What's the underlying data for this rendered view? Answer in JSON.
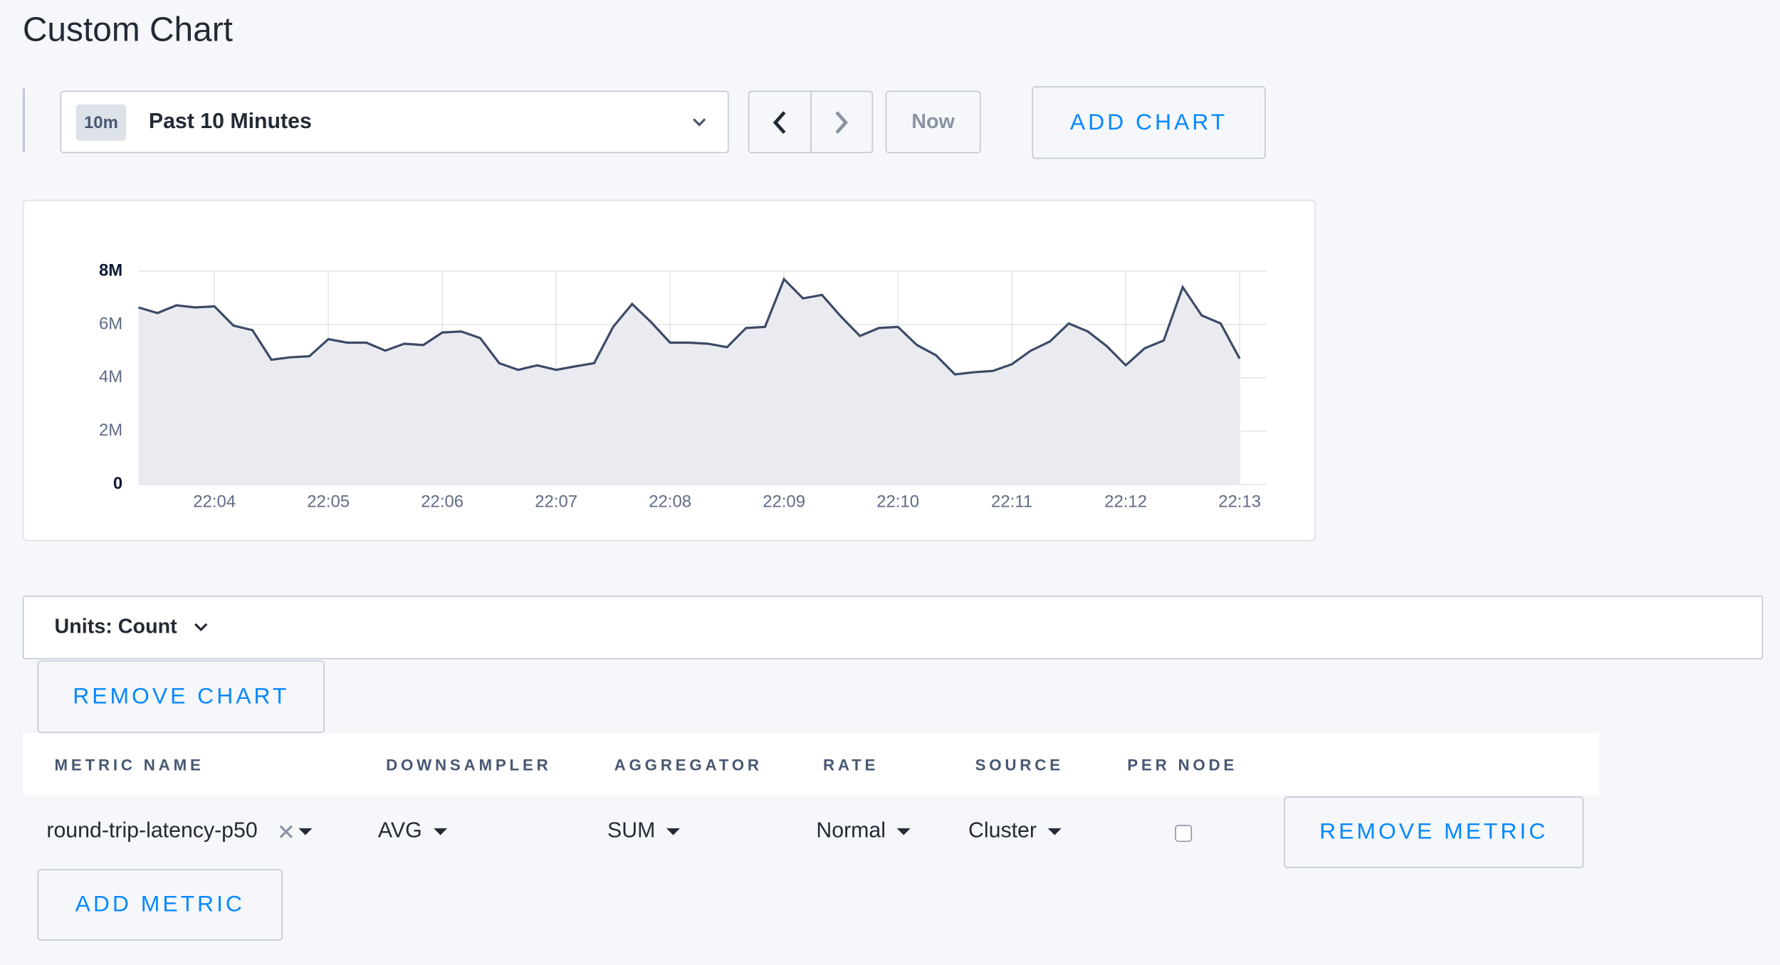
{
  "header": {
    "title": "Custom Chart"
  },
  "controls": {
    "time_badge": "10m",
    "time_range": "Past 10 Minutes",
    "now": "Now",
    "add_chart": "ADD CHART"
  },
  "chart_data": {
    "type": "line",
    "categories": [
      null,
      null,
      null,
      null,
      "22:04",
      null,
      null,
      null,
      null,
      null,
      "22:05",
      null,
      null,
      null,
      null,
      null,
      "22:06",
      null,
      null,
      null,
      null,
      null,
      "22:07",
      null,
      null,
      null,
      null,
      null,
      "22:08",
      null,
      null,
      null,
      null,
      null,
      "22:09",
      null,
      null,
      null,
      null,
      null,
      "22:10",
      null,
      null,
      null,
      null,
      null,
      "22:11",
      null,
      null,
      null,
      null,
      null,
      "22:12",
      null,
      null,
      null,
      null,
      null,
      "22:13"
    ],
    "values": [
      6640000,
      6430000,
      6720000,
      6640000,
      6680000,
      5960000,
      5790000,
      4680000,
      4770000,
      4810000,
      5450000,
      5320000,
      5320000,
      5020000,
      5280000,
      5230000,
      5700000,
      5740000,
      5490000,
      4550000,
      4300000,
      4470000,
      4300000,
      4430000,
      4550000,
      5910000,
      6770000,
      6090000,
      5320000,
      5320000,
      5280000,
      5150000,
      5870000,
      5910000,
      7700000,
      6980000,
      7110000,
      6300000,
      5570000,
      5870000,
      5910000,
      5230000,
      4850000,
      4130000,
      4210000,
      4260000,
      4510000,
      5020000,
      5360000,
      6040000,
      5740000,
      5190000,
      4470000,
      5110000,
      5400000,
      7400000,
      6340000,
      6040000,
      4720000
    ],
    "color": "#3b4a66",
    "fill": "#e9ebf0",
    "ylim": [
      0,
      8000000
    ],
    "yticks": [
      0,
      {
        "value": 2000000,
        "label": "2M"
      },
      {
        "value": 4000000,
        "label": "4M"
      },
      {
        "value": 6000000,
        "label": "6M"
      },
      {
        "value": 8000000,
        "label": "8M"
      }
    ],
    "grid": true
  },
  "units": {
    "label": "Units: Count",
    "remove_chart": "REMOVE CHART"
  },
  "table": {
    "headers": [
      "METRIC NAME",
      "DOWNSAMPLER",
      "AGGREGATOR",
      "RATE",
      "SOURCE",
      "PER NODE"
    ],
    "rows": [
      [
        "round-trip-latency-p50",
        "AVG",
        "SUM",
        "Normal",
        "Cluster"
      ]
    ],
    "remove_metric": "REMOVE METRIC",
    "add_metric": "ADD METRIC"
  }
}
